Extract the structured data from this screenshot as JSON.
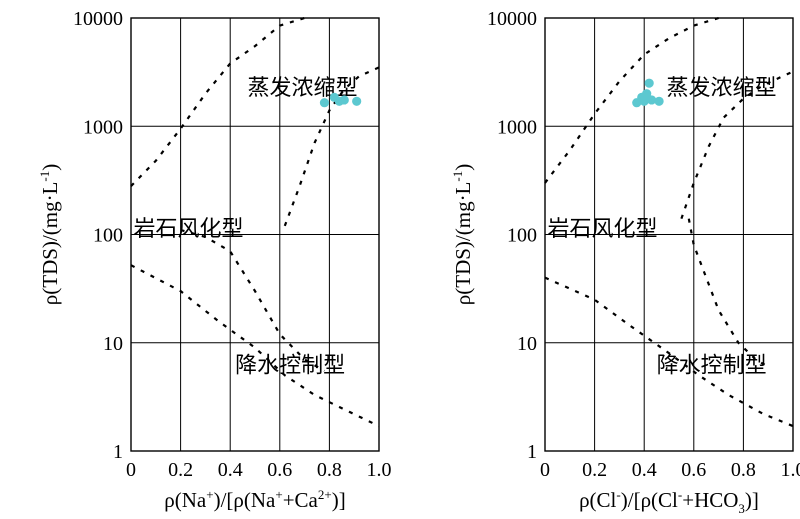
{
  "chart_data": [
    {
      "type": "scatter",
      "x_tick_labels": [
        "0",
        "0.2",
        "0.4",
        "0.6",
        "0.8",
        "1.0"
      ],
      "y_tick_labels": [
        "1",
        "10",
        "100",
        "1000",
        "10000"
      ],
      "xlim": [
        0,
        1.0
      ],
      "ylim": [
        1,
        10000
      ],
      "y_scale": "log",
      "grid": true,
      "marker_color": "#5cc8d0",
      "ylabel": {
        "base": "ρ(TDS)/(mg·L",
        "sup": "-1",
        "tail": ")"
      },
      "xlabel": [
        {
          "t": "ρ(Na"
        },
        {
          "t": "+",
          "s": "sup"
        },
        {
          "t": ")/[ρ(Na"
        },
        {
          "t": "+",
          "s": "sup"
        },
        {
          "t": "+Ca"
        },
        {
          "t": "2+",
          "s": "sup"
        },
        {
          "t": ")]"
        }
      ],
      "regions": [
        {
          "label": "蒸发浓缩型",
          "x": 0.47,
          "y": 2300
        },
        {
          "label": "岩石风化型",
          "x": 0.01,
          "y": 115
        },
        {
          "label": "降水控制型",
          "x": 0.42,
          "y": 6.3
        }
      ],
      "boundaries": [
        [
          [
            0.0,
            280
          ],
          [
            0.1,
            480
          ],
          [
            0.2,
            950
          ],
          [
            0.3,
            2000
          ],
          [
            0.4,
            3800
          ],
          [
            0.5,
            5500
          ],
          [
            0.6,
            8500
          ],
          [
            0.7,
            10000
          ]
        ],
        [
          [
            0.62,
            120
          ],
          [
            0.68,
            280
          ],
          [
            0.74,
            700
          ],
          [
            0.8,
            1400
          ],
          [
            0.86,
            2200
          ],
          [
            0.92,
            2900
          ],
          [
            1.0,
            3500
          ]
        ],
        [
          [
            0.0,
            52
          ],
          [
            0.2,
            30
          ],
          [
            0.35,
            16
          ],
          [
            0.5,
            9
          ],
          [
            0.62,
            5
          ],
          [
            0.74,
            3.3
          ],
          [
            0.88,
            2.3
          ],
          [
            1.0,
            1.7
          ]
        ],
        [
          [
            0.2,
            110
          ],
          [
            0.3,
            95
          ],
          [
            0.4,
            70
          ],
          [
            0.5,
            30
          ],
          [
            0.6,
            12
          ],
          [
            0.7,
            7
          ],
          [
            0.78,
            5.5
          ]
        ]
      ],
      "series": [
        {
          "x": [
            0.78,
            0.82,
            0.84,
            0.86,
            0.91
          ],
          "y": [
            1650,
            1850,
            1700,
            1750,
            1700
          ]
        }
      ]
    },
    {
      "type": "scatter",
      "x_tick_labels": [
        "0",
        "0.2",
        "0.4",
        "0.6",
        "0.8",
        "1.0"
      ],
      "y_tick_labels": [
        "1",
        "10",
        "100",
        "1000",
        "10000"
      ],
      "xlim": [
        0,
        1.0
      ],
      "ylim": [
        1,
        10000
      ],
      "y_scale": "log",
      "grid": true,
      "marker_color": "#5cc8d0",
      "ylabel": {
        "base": "ρ(TDS)/(mg·L",
        "sup": "-1",
        "tail": ")"
      },
      "xlabel": [
        {
          "t": "ρ(Cl"
        },
        {
          "t": "-",
          "s": "sup"
        },
        {
          "t": ")/[ρ(Cl"
        },
        {
          "t": "-",
          "s": "sup"
        },
        {
          "t": "+HCO"
        },
        {
          "t": "3",
          "s": "sub"
        },
        {
          "t": ")]"
        }
      ],
      "regions": [
        {
          "label": "蒸发浓缩型",
          "x": 0.49,
          "y": 2300
        },
        {
          "label": "岩石风化型",
          "x": 0.01,
          "y": 115
        },
        {
          "label": "降水控制型",
          "x": 0.45,
          "y": 6.3
        }
      ],
      "boundaries": [
        [
          [
            0.0,
            300
          ],
          [
            0.1,
            600
          ],
          [
            0.2,
            1300
          ],
          [
            0.3,
            2600
          ],
          [
            0.4,
            4600
          ],
          [
            0.5,
            6500
          ],
          [
            0.6,
            8500
          ],
          [
            0.7,
            10000
          ]
        ],
        [
          [
            0.55,
            140
          ],
          [
            0.6,
            300
          ],
          [
            0.66,
            650
          ],
          [
            0.72,
            1200
          ],
          [
            0.8,
            1800
          ],
          [
            0.88,
            2400
          ],
          [
            1.0,
            3200
          ]
        ],
        [
          [
            0.58,
            140
          ],
          [
            0.6,
            80
          ],
          [
            0.65,
            40
          ],
          [
            0.7,
            20
          ],
          [
            0.78,
            10
          ],
          [
            0.85,
            7
          ],
          [
            0.9,
            6
          ]
        ],
        [
          [
            0.0,
            40
          ],
          [
            0.2,
            25
          ],
          [
            0.35,
            14
          ],
          [
            0.5,
            8
          ],
          [
            0.62,
            5
          ],
          [
            0.74,
            3.3
          ],
          [
            0.88,
            2.2
          ],
          [
            1.0,
            1.7
          ]
        ]
      ],
      "series": [
        {
          "x": [
            0.37,
            0.39,
            0.4,
            0.41,
            0.42,
            0.43,
            0.46
          ],
          "y": [
            1650,
            1850,
            1700,
            2000,
            2500,
            1750,
            1700
          ]
        }
      ]
    }
  ]
}
